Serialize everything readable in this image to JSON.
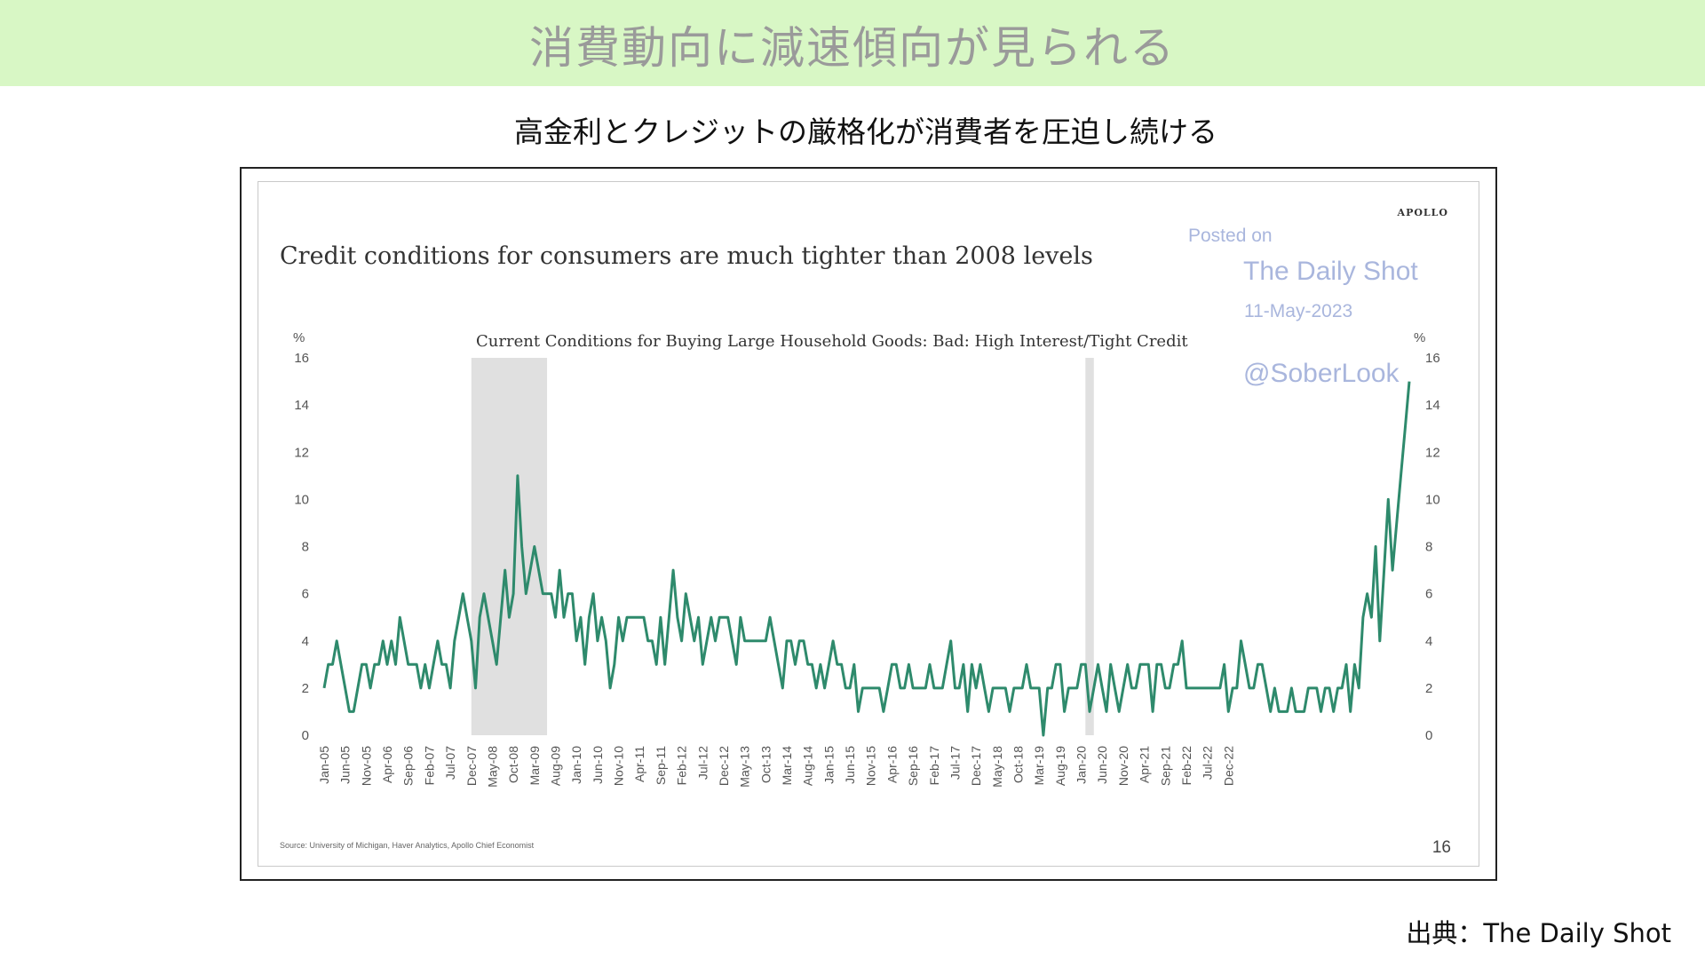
{
  "header": {
    "title": "消費動向に減速傾向が見られる"
  },
  "subtitle": "高金利とクレジットの厳格化が消費者を圧迫し続ける",
  "footer": {
    "source_credit": "出典：The Daily Shot"
  },
  "chart_header": {
    "brand": "APOLLO",
    "headline": "Credit conditions for consumers are much tighter than 2008 levels",
    "watermark": {
      "line1": "Posted on",
      "line2": "The Daily Shot",
      "line3": "11-May-2023",
      "line4": "@SoberLook"
    },
    "source": "Source: University of Michigan, Haver Analytics, Apollo Chief Economist",
    "page_number": "16"
  },
  "colors": {
    "line": "#2e8a6c",
    "banner": "#d8f7c5",
    "recession": "#e0e0e0"
  },
  "chart_data": {
    "type": "line",
    "title": "Current Conditions for Buying Large Household Goods: Bad: High Interest/Tight Credit",
    "ylabel_left": "%",
    "ylabel_right": "%",
    "ylim": [
      0,
      16
    ],
    "y_ticks": [
      0,
      2,
      4,
      6,
      8,
      10,
      12,
      14,
      16
    ],
    "x_start": "Jan-05",
    "x_end": "Apr-23",
    "x_tick_labels": [
      "Jan-05",
      "Jun-05",
      "Nov-05",
      "Apr-06",
      "Sep-06",
      "Feb-07",
      "Jul-07",
      "Dec-07",
      "May-08",
      "Oct-08",
      "Mar-09",
      "Aug-09",
      "Jan-10",
      "Jun-10",
      "Nov-10",
      "Apr-11",
      "Sep-11",
      "Feb-12",
      "Jul-12",
      "Dec-12",
      "May-13",
      "Oct-13",
      "Mar-14",
      "Aug-14",
      "Jan-15",
      "Jun-15",
      "Nov-15",
      "Apr-16",
      "Sep-16",
      "Feb-17",
      "Jul-17",
      "Dec-17",
      "May-18",
      "Oct-18",
      "Mar-19",
      "Aug-19",
      "Jan-20",
      "Jun-20",
      "Nov-20",
      "Apr-21",
      "Sep-21",
      "Feb-22",
      "Jul-22",
      "Dec-22"
    ],
    "recessions": [
      [
        "Dec-07",
        "Jun-09"
      ],
      [
        "Feb-20",
        "Apr-20"
      ]
    ],
    "series": [
      {
        "values": [
          2,
          3,
          3,
          4,
          3,
          2,
          1,
          1,
          2,
          3,
          3,
          2,
          3,
          3,
          4,
          3,
          4,
          3,
          5,
          4,
          3,
          3,
          3,
          2,
          3,
          2,
          3,
          4,
          3,
          3,
          2,
          4,
          5,
          6,
          5,
          4,
          2,
          5,
          6,
          5,
          4,
          3,
          5,
          7,
          5,
          6,
          11,
          8,
          6,
          7,
          8,
          7,
          6,
          6,
          6,
          5,
          7,
          5,
          6,
          6,
          4,
          5,
          3,
          5,
          6,
          4,
          5,
          4,
          2,
          3,
          5,
          4,
          5,
          5,
          5,
          5,
          5,
          4,
          4,
          3,
          5,
          3,
          5,
          7,
          5,
          4,
          6,
          5,
          4,
          5,
          3,
          4,
          5,
          4,
          5,
          5,
          5,
          4,
          3,
          5,
          4,
          4,
          4,
          4,
          4,
          4,
          5,
          4,
          3,
          2,
          4,
          4,
          3,
          4,
          4,
          3,
          3,
          2,
          3,
          2,
          3,
          4,
          3,
          3,
          2,
          2,
          3,
          1,
          2,
          2,
          2,
          2,
          2,
          1,
          2,
          3,
          3,
          2,
          2,
          3,
          2,
          2,
          2,
          2,
          3,
          2,
          2,
          2,
          3,
          4,
          2,
          2,
          3,
          1,
          3,
          2,
          3,
          2,
          1,
          2,
          2,
          2,
          2,
          1,
          2,
          2,
          2,
          3,
          2,
          2,
          2,
          0,
          2,
          2,
          3,
          3,
          1,
          2,
          2,
          2,
          3,
          3,
          1,
          2,
          3,
          2,
          1,
          3,
          2,
          1,
          2,
          3,
          2,
          2,
          3,
          3,
          3,
          1,
          3,
          3,
          2,
          2,
          3,
          3,
          4,
          2,
          2,
          2,
          2,
          2,
          2,
          2,
          2,
          2,
          3,
          1,
          2,
          2,
          4,
          3,
          2,
          2,
          3,
          3,
          2,
          1,
          2,
          1,
          1,
          1,
          2,
          1,
          1,
          1,
          2,
          2,
          2,
          1,
          2,
          2,
          1,
          2,
          2,
          3,
          1,
          3,
          2,
          5,
          6,
          5,
          8,
          4,
          7,
          10,
          7,
          9,
          11,
          13,
          15
        ]
      }
    ]
  }
}
